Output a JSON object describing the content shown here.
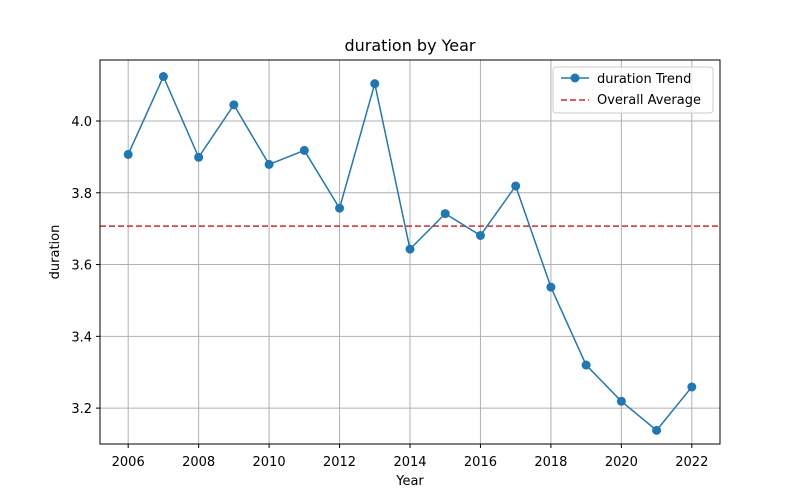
{
  "chart_data": {
    "type": "line",
    "title": "duration by Year",
    "xlabel": "Year",
    "ylabel": "duration",
    "xlim": [
      2005.2,
      2022.8
    ],
    "ylim": [
      3.1,
      4.17
    ],
    "xticks": [
      2006,
      2008,
      2010,
      2012,
      2014,
      2016,
      2018,
      2020,
      2022
    ],
    "yticks": [
      3.2,
      3.4,
      3.6,
      3.8,
      4.0
    ],
    "ytick_labels": [
      "3.2",
      "3.4",
      "3.6",
      "3.8",
      "4.0"
    ],
    "grid": true,
    "legend_position": "upper right",
    "series": [
      {
        "name": "duration Trend",
        "color": "#1f77b4",
        "style": "solid-with-circle-markers",
        "x": [
          2006,
          2007,
          2008,
          2009,
          2010,
          2011,
          2012,
          2013,
          2014,
          2015,
          2016,
          2017,
          2018,
          2019,
          2020,
          2021,
          2022
        ],
        "y": [
          3.907,
          4.124,
          3.899,
          4.045,
          3.879,
          3.918,
          3.757,
          4.104,
          3.643,
          3.742,
          3.681,
          3.819,
          3.537,
          3.32,
          3.219,
          3.138,
          3.259
        ]
      }
    ],
    "reference_lines": [
      {
        "name": "Overall Average",
        "orientation": "horizontal",
        "value": 3.707,
        "color": "#d62728",
        "style": "dashed"
      }
    ]
  }
}
